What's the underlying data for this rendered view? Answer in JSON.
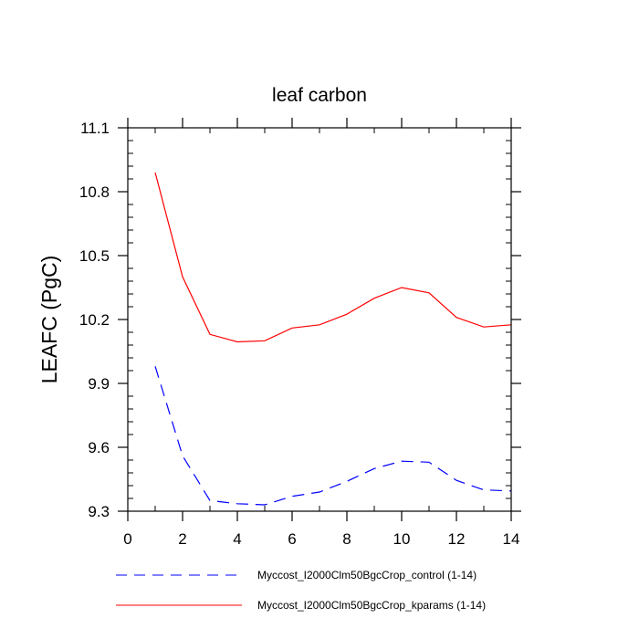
{
  "chart_data": {
    "type": "line",
    "title": "leaf carbon",
    "xlabel": "",
    "ylabel": "LEAFC  (PgC)",
    "xlim": [
      0,
      14
    ],
    "ylim": [
      9.3,
      11.1
    ],
    "xticks": [
      0,
      2,
      4,
      6,
      8,
      10,
      12,
      14
    ],
    "xtick_labels": [
      "0",
      "2",
      "4",
      "6",
      "8",
      "10",
      "12",
      "14"
    ],
    "yticks": [
      9.3,
      9.6,
      9.9,
      10.2,
      10.5,
      10.8,
      11.1
    ],
    "ytick_labels": [
      "9.3",
      "9.6",
      "9.9",
      "10.2",
      "10.5",
      "10.8",
      "11.1"
    ],
    "x": [
      1,
      2,
      3,
      4,
      5,
      6,
      7,
      8,
      9,
      10,
      11,
      12,
      13,
      14
    ],
    "series": [
      {
        "name": "Myccost_I2000Clm50BgcCrop_control (1-14)",
        "color": "#0000ff",
        "dash": "dashed",
        "values": [
          9.98,
          9.56,
          9.35,
          9.335,
          9.33,
          9.37,
          9.39,
          9.44,
          9.5,
          9.535,
          9.53,
          9.445,
          9.4,
          9.395
        ]
      },
      {
        "name": "Myccost_I2000Clm50BgcCrop_kparams (1-14)",
        "color": "#ff0000",
        "dash": "solid",
        "values": [
          10.89,
          10.4,
          10.13,
          10.095,
          10.1,
          10.16,
          10.175,
          10.225,
          10.3,
          10.35,
          10.325,
          10.21,
          10.165,
          10.175
        ]
      }
    ],
    "legend_position": "bottom"
  }
}
